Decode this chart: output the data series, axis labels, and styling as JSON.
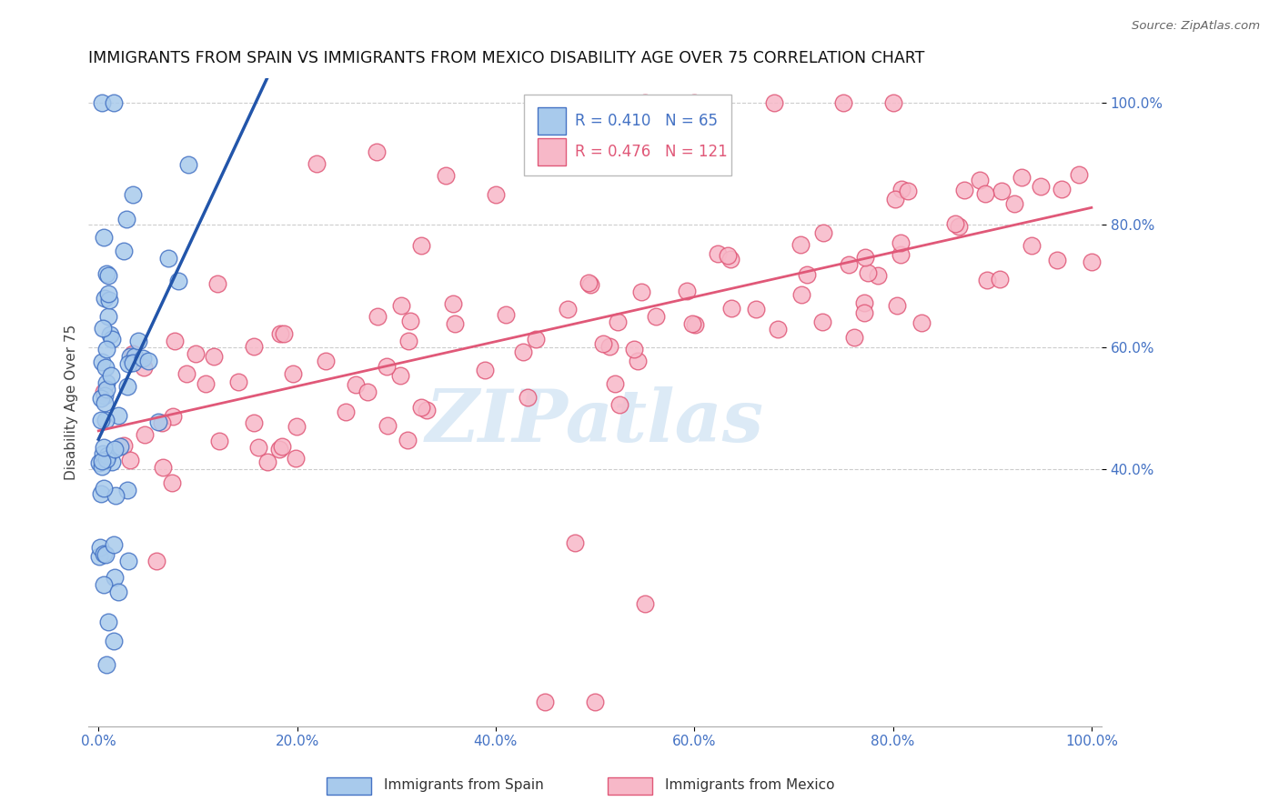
{
  "title": "IMMIGRANTS FROM SPAIN VS IMMIGRANTS FROM MEXICO DISABILITY AGE OVER 75 CORRELATION CHART",
  "source": "Source: ZipAtlas.com",
  "ylabel": "Disability Age Over 75",
  "R_spain": 0.41,
  "N_spain": 65,
  "R_mexico": 0.476,
  "N_mexico": 121,
  "color_spain_fill": "#A8CAEC",
  "color_spain_edge": "#4472C4",
  "color_mexico_fill": "#F7B8C8",
  "color_mexico_edge": "#E05878",
  "color_trend_spain": "#2255AA",
  "color_trend_mexico": "#E05878",
  "color_axis_labels": "#4472C4",
  "color_grid": "#CCCCCC",
  "watermark": "ZIPatlas",
  "legend1_label": "Immigrants from Spain",
  "legend2_label": "Immigrants from Mexico",
  "xlim": [
    0,
    100
  ],
  "ylim": [
    0,
    100
  ],
  "yticks": [
    40,
    60,
    80,
    100
  ],
  "xticks": [
    0,
    20,
    40,
    60,
    80,
    100
  ]
}
